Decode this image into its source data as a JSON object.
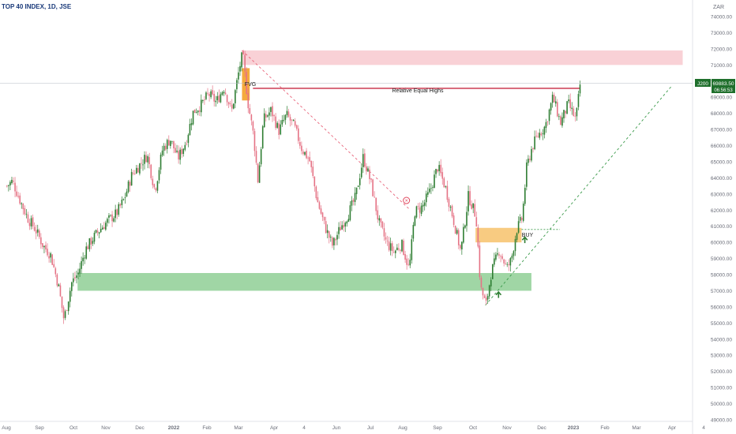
{
  "header": {
    "title": "TOP 40 INDEX, 1D, JSE"
  },
  "currency": "ZAR",
  "price_badge": {
    "symbol": "J200",
    "price": "69883.50",
    "timer": "06:56:53"
  },
  "colors": {
    "up": "#2e7d32",
    "down": "#e57385",
    "pink_zone": "#f8c9cf",
    "green_zone": "#8fcf95",
    "orange_zone": "#f7c26b",
    "fvg_fill": "#f4a533",
    "resistance_line": "#c62840",
    "trend_up_dashed": "#3a9a4a",
    "trend_down_dashed": "#e8647a",
    "axis_text": "#6a6d78",
    "badge_green": "#1f6f2c"
  },
  "annotations": {
    "fvg_label": "FVG",
    "equal_highs_label": "Relative Equal Highs",
    "buy_label": "BUY",
    "x_marker": "×"
  },
  "chart_data": {
    "type": "candlestick",
    "title": "TOP 40 INDEX, 1D, JSE",
    "ylim": [
      48500,
      75000
    ],
    "y_ticks": [
      "74000.00",
      "73000.00",
      "72000.00",
      "71000.00",
      "70000.00",
      "69000.00",
      "68000.00",
      "67000.00",
      "66000.00",
      "65000.00",
      "64000.00",
      "63000.00",
      "62000.00",
      "61000.00",
      "60000.00",
      "59000.00",
      "58000.00",
      "57000.00",
      "56000.00",
      "55000.00",
      "54000.00",
      "53000.00",
      "52000.00",
      "51000.00",
      "50000.00",
      "49000.00"
    ],
    "x_ticks": [
      "Aug",
      "Sep",
      "Oct",
      "Nov",
      "Dec",
      "2022",
      "Feb",
      "Mar",
      "Apr",
      "4",
      "Jun",
      "Jul",
      "Aug",
      "Sep",
      "Oct",
      "Nov",
      "Dec",
      "2023",
      "Feb",
      "Mar",
      "Apr",
      "4"
    ],
    "last_price": 69883.5,
    "close_path": [
      [
        "2021-08-01",
        63500
      ],
      [
        "2021-08-06",
        63800
      ],
      [
        "2021-08-13",
        62600
      ],
      [
        "2021-08-20",
        61500
      ],
      [
        "2021-08-27",
        60800
      ],
      [
        "2021-09-03",
        59800
      ],
      [
        "2021-09-10",
        59200
      ],
      [
        "2021-09-17",
        57300
      ],
      [
        "2021-09-22",
        55200
      ],
      [
        "2021-09-29",
        57500
      ],
      [
        "2021-10-05",
        58100
      ],
      [
        "2021-10-12",
        59600
      ],
      [
        "2021-10-19",
        60300
      ],
      [
        "2021-10-26",
        60900
      ],
      [
        "2021-11-02",
        61400
      ],
      [
        "2021-11-09",
        61800
      ],
      [
        "2021-11-16",
        62700
      ],
      [
        "2021-11-23",
        64200
      ],
      [
        "2021-11-30",
        64800
      ],
      [
        "2021-12-07",
        65400
      ],
      [
        "2021-12-14",
        63200
      ],
      [
        "2021-12-21",
        65800
      ],
      [
        "2021-12-28",
        66400
      ],
      [
        "2022-01-04",
        65200
      ],
      [
        "2022-01-11",
        66200
      ],
      [
        "2022-01-18",
        68100
      ],
      [
        "2022-01-25",
        68500
      ],
      [
        "2022-02-01",
        69200
      ],
      [
        "2022-02-08",
        68700
      ],
      [
        "2022-02-15",
        69600
      ],
      [
        "2022-02-22",
        68100
      ],
      [
        "2022-03-01",
        70800
      ],
      [
        "2022-03-04",
        71700
      ],
      [
        "2022-03-09",
        68600
      ],
      [
        "2022-03-14",
        66600
      ],
      [
        "2022-03-18",
        63800
      ],
      [
        "2022-03-23",
        67600
      ],
      [
        "2022-03-30",
        68200
      ],
      [
        "2022-04-06",
        66900
      ],
      [
        "2022-04-13",
        67900
      ],
      [
        "2022-04-20",
        67200
      ],
      [
        "2022-04-27",
        65800
      ],
      [
        "2022-05-04",
        65100
      ],
      [
        "2022-05-11",
        62600
      ],
      [
        "2022-05-18",
        61000
      ],
      [
        "2022-05-25",
        59800
      ],
      [
        "2022-06-01",
        60900
      ],
      [
        "2022-06-08",
        61700
      ],
      [
        "2022-06-15",
        62800
      ],
      [
        "2022-06-22",
        65300
      ],
      [
        "2022-06-29",
        63700
      ],
      [
        "2022-07-06",
        61300
      ],
      [
        "2022-07-13",
        60000
      ],
      [
        "2022-07-20",
        59400
      ],
      [
        "2022-07-27",
        59900
      ],
      [
        "2022-08-03",
        58300
      ],
      [
        "2022-08-08",
        61900
      ],
      [
        "2022-08-15",
        62200
      ],
      [
        "2022-08-22",
        63200
      ],
      [
        "2022-08-29",
        64700
      ],
      [
        "2022-09-05",
        63400
      ],
      [
        "2022-09-12",
        61500
      ],
      [
        "2022-09-19",
        59400
      ],
      [
        "2022-09-26",
        62900
      ],
      [
        "2022-10-03",
        61600
      ],
      [
        "2022-10-07",
        57200
      ],
      [
        "2022-10-12",
        56100
      ],
      [
        "2022-10-17",
        58200
      ],
      [
        "2022-10-24",
        59500
      ],
      [
        "2022-10-31",
        58400
      ],
      [
        "2022-11-04",
        58900
      ],
      [
        "2022-11-09",
        60800
      ],
      [
        "2022-11-14",
        61500
      ],
      [
        "2022-11-18",
        64600
      ],
      [
        "2022-11-23",
        65900
      ],
      [
        "2022-11-28",
        66600
      ],
      [
        "2022-12-05",
        67200
      ],
      [
        "2022-12-12",
        69000
      ],
      [
        "2022-12-19",
        67400
      ],
      [
        "2022-12-26",
        68600
      ],
      [
        "2023-01-02",
        67600
      ],
      [
        "2023-01-06",
        69883.5
      ]
    ],
    "zones": [
      {
        "type": "supply",
        "from": "2022-03-04",
        "to": "2023-04-10",
        "low": 71000,
        "high": 71900
      },
      {
        "type": "demand",
        "from": "2021-10-05",
        "to": "2022-11-23",
        "low": 57000,
        "high": 58100
      },
      {
        "type": "fvg",
        "from": "2022-03-04",
        "to": "2022-03-11",
        "low": 68800,
        "high": 70800
      },
      {
        "type": "order_block",
        "from": "2022-10-03",
        "to": "2022-11-14",
        "low": 60000,
        "high": 60900
      }
    ],
    "lines": [
      {
        "name": "Relative Equal Highs",
        "from": "2022-03-14",
        "to": "2023-01-06",
        "value": 69550
      },
      {
        "name": "downtrend",
        "style": "dashed",
        "from": "2022-03-04",
        "to": "2022-08-03",
        "from_value": 71900,
        "to_value": 62100
      },
      {
        "name": "uptrend",
        "style": "dashed",
        "from": "2022-10-12",
        "to": "2023-03-31",
        "from_value": 56100,
        "to_value": 69700
      },
      {
        "name": "buy_level",
        "style": "dotted",
        "from": "2022-11-14",
        "to": "2022-12-19",
        "value": 60800
      }
    ],
    "markers": [
      {
        "type": "circle_x",
        "date": "2022-08-01",
        "value": 62600
      },
      {
        "type": "arrow_up",
        "date": "2022-10-24",
        "value": 56800
      },
      {
        "type": "arrow_up",
        "date": "2022-11-17",
        "value": 60200
      }
    ],
    "grid": false,
    "legend": "none"
  }
}
